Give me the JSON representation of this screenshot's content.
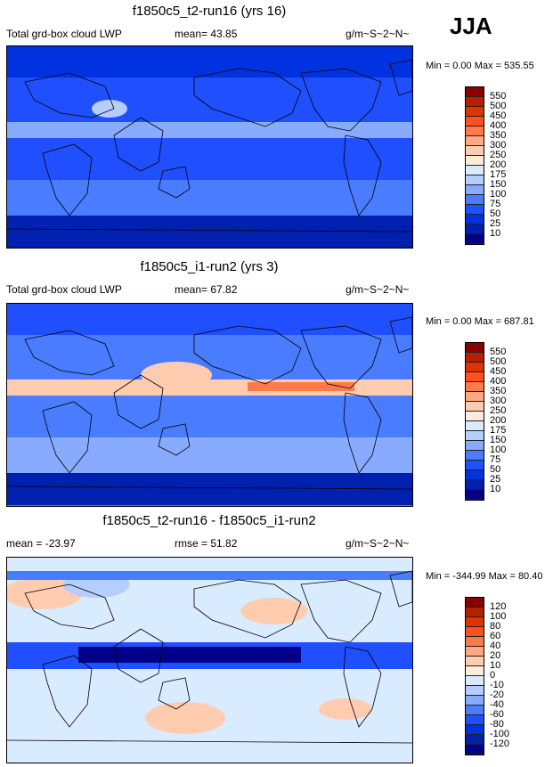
{
  "season": "JJA",
  "panels": [
    {
      "title": "f1850c5_t2-run16 (yrs 16)",
      "left_label": "Total grd-box cloud LWP",
      "mid_label": "mean=  43.85",
      "right_label": "g/m~S~2~N~",
      "minmax": "Min =   0.00 Max = 535.55",
      "kind": "lwp_low"
    },
    {
      "title": "f1850c5_i1-run2 (yrs 3)",
      "left_label": "Total grd-box cloud LWP",
      "mid_label": "mean=  67.82",
      "right_label": "g/m~S~2~N~",
      "minmax": "Min =   0.00 Max = 687.81",
      "kind": "lwp_high"
    },
    {
      "title": "f1850c5_t2-run16 - f1850c5_i1-run2",
      "left_label": "mean = -23.97",
      "mid_label": "rmse =  51.82",
      "right_label": "g/m~S~2~N~",
      "minmax": "Min = -344.99 Max =  80.40",
      "kind": "diff"
    }
  ],
  "colorbar_colors": [
    "#8b0000",
    "#b42000",
    "#e03400",
    "#ff5020",
    "#ff7a4a",
    "#ffa882",
    "#ffccb0",
    "#ffebdc",
    "#d8ebff",
    "#b5cdff",
    "#88aaff",
    "#4a7cff",
    "#1f4fff",
    "#0032e0",
    "#0020b0",
    "#000088"
  ],
  "colorbar_labels": {
    "lwp": [
      "550",
      "500",
      "450",
      "400",
      "350",
      "300",
      "250",
      "200",
      "175",
      "150",
      "100",
      "75",
      "50",
      "25",
      "10"
    ],
    "diff": [
      "120",
      "100",
      "80",
      "60",
      "40",
      "20",
      "10",
      "0",
      "-10",
      "-20",
      "-40",
      "-60",
      "-80",
      "-100",
      "-120"
    ]
  }
}
